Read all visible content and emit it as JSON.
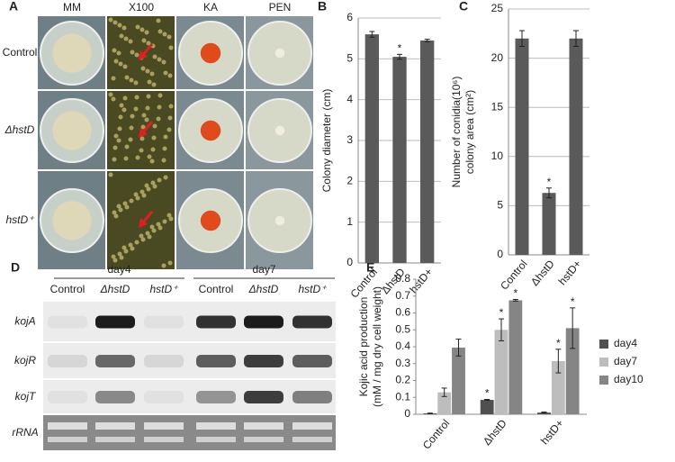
{
  "panel_a": {
    "letter": "A",
    "columns": [
      "MM",
      "X100",
      "KA",
      "PEN"
    ],
    "rows": [
      "Control",
      "ΔhstD",
      "hstD⁺"
    ]
  },
  "panel_d": {
    "letter": "D",
    "groups": [
      "day4",
      "day7"
    ],
    "lanes": [
      "Control",
      "ΔhstD",
      "hstD⁺",
      "Control",
      "ΔhstD",
      "hstD⁺"
    ],
    "rows": [
      "kojA",
      "kojR",
      "kojT",
      "rRNA"
    ]
  },
  "chart_data": [
    {
      "type": "bar",
      "panel": "B",
      "y_label": [
        "Colony diameter (cm)"
      ],
      "categories": [
        "Control",
        "ΔhstD",
        "hstD+"
      ],
      "values": [
        5.6,
        5.05,
        5.45
      ],
      "errors": [
        0.07,
        0.06,
        0.03
      ],
      "color": "#5a5a5a",
      "ylim": [
        0,
        6
      ],
      "yticks": [
        0,
        1,
        2,
        3,
        4,
        5,
        6
      ],
      "grid": true,
      "annotations": [
        {
          "text": "*",
          "category": 1
        }
      ]
    },
    {
      "type": "bar",
      "panel": "C",
      "y_label": [
        "Number of conidia(10⁶)",
        "colony area (cm²)"
      ],
      "categories": [
        "Control",
        "ΔhstD",
        "hstD+"
      ],
      "values": [
        22,
        6.3,
        22
      ],
      "errors": [
        0.8,
        0.5,
        0.8
      ],
      "color": "#5a5a5a",
      "ylim": [
        0,
        25
      ],
      "yticks": [
        0,
        5,
        10,
        15,
        20,
        25
      ],
      "grid": true,
      "annotations": [
        {
          "text": "*",
          "category": 1
        }
      ]
    },
    {
      "type": "grouped_bar",
      "panel": "E",
      "y_label": [
        "Kojic  acid production",
        "(mM / mg dry cell weight)"
      ],
      "categories": [
        "Control",
        "ΔhstD",
        "hstD+"
      ],
      "series": [
        {
          "name": "day4",
          "color": "#505050",
          "values": [
            0.005,
            0.085,
            0.01
          ],
          "errors": [
            0.002,
            0.003,
            0.003
          ]
        },
        {
          "name": "day7",
          "color": "#bdbdbd",
          "values": [
            0.13,
            0.5,
            0.315
          ],
          "errors": [
            0.025,
            0.065,
            0.07
          ]
        },
        {
          "name": "day10",
          "color": "#858585",
          "values": [
            0.395,
            0.675,
            0.51
          ],
          "errors": [
            0.05,
            0.005,
            0.12
          ]
        }
      ],
      "ylim": [
        0,
        0.8
      ],
      "yticks": [
        0,
        0.1,
        0.2,
        0.3,
        0.4,
        0.5,
        0.6,
        0.7,
        0.8
      ],
      "grid": false,
      "annotations": [
        {
          "text": "*",
          "category": 1,
          "series": 0
        },
        {
          "text": "*",
          "category": 1,
          "series": 1
        },
        {
          "text": "*",
          "category": 1,
          "series": 2
        },
        {
          "text": "*",
          "category": 2,
          "series": 1
        },
        {
          "text": "*",
          "category": 2,
          "series": 2
        }
      ]
    }
  ]
}
